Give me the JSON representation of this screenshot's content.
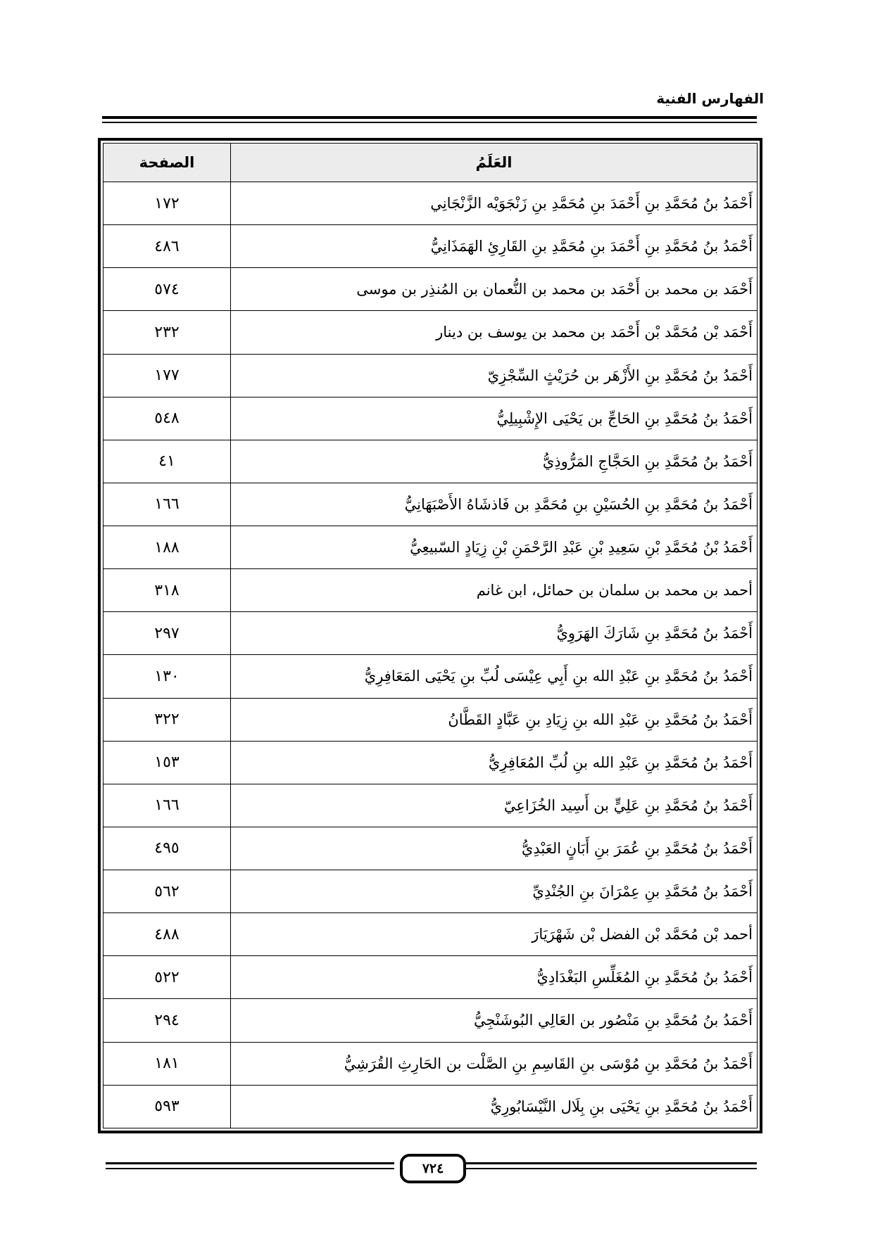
{
  "running_head": "الفهارس الفنية",
  "table": {
    "headers": {
      "name": "العَلَمُ",
      "page": "الصفحة"
    },
    "rows": [
      {
        "name": "أَحْمَدُ بنُ مُحَمَّدِ بنِ أَحْمَدَ بنِ مُحَمَّدِ بنِ زَنْجَوَيْه الزَّنْجَانِي",
        "page": "١٧٢"
      },
      {
        "name": "أَحْمَدُ بنُ مُحَمَّدِ بنِ أَحْمَدَ بنِ مُحَمَّدِ بنِ القَارِئِ الهَمَذَانِيُّ",
        "page": "٤٨٦"
      },
      {
        "name": "أَحْمَد بن محمد بن أَحْمَد بن محمد بن النُّعمان بن المُنذِر بن موسى",
        "page": "٥٧٤"
      },
      {
        "name": "أَحْمَد بْن مُحَمَّد بْن أَحْمَد بن محمد بن يوسف بن دينار",
        "page": "٢٣٢"
      },
      {
        "name": "أَحْمَدُ بنُ مُحَمَّدِ بنِ الأَزْهَر بن حُرَيْثٍ السِّجْزِيّ",
        "page": "١٧٧"
      },
      {
        "name": "أَحْمَدُ بنُ مُحَمَّدِ بنِ الحَاجِّ بن يَحْيَى الإِشْبِيلِيُّ",
        "page": "٥٤٨"
      },
      {
        "name": "أَحْمَدُ بنُ مُحَمَّدِ بنِ الحَجَّاجِ المَرُّوذِيُّ",
        "page": "٤١"
      },
      {
        "name": "أَحْمَدُ بنُ مُحَمَّدِ بنِ الحُسَيْنِ بنِ مُحَمَّدِ بن فَاذشَاهُ الأَصْبَهَانِيُّ",
        "page": "١٦٦"
      },
      {
        "name": "أَحْمَدُ بْنُ مُحَمَّدِ بْنِ سَعِيدِ بْنِ عَبْدِ الرَّحْمَنِ بْنِ زِيَادٍ السّبيعِيُّ",
        "page": "١٨٨"
      },
      {
        "name": "أحمد بن محمد بن سلمان بن حمائل، ابن غانم",
        "page": "٣١٨"
      },
      {
        "name": "أَحْمَدُ بنُ مُحَمَّدِ بنِ شَارَكَ الهَرَوِيُّ",
        "page": "٢٩٧"
      },
      {
        "name": "أَحْمَدُ بنُ مُحَمَّدِ بنِ عَبْدِ الله بنِ أَبِي عِيْسَى لُبِّ بنِ يَحْيَى المَعَافِرِيُّ",
        "page": "١٣٠"
      },
      {
        "name": "أَحْمَدُ بنُ مُحَمَّدِ بنِ عَبْدِ الله بنِ زِيَادِ بنِ عَبَّادٍ القَطَّانُ",
        "page": "٣٢٢"
      },
      {
        "name": "أَحْمَدُ بنُ مُحَمَّدِ بنِ عَبْدِ الله بنِ لُبِّ المُعَافِرِيُّ",
        "page": "١٥٣"
      },
      {
        "name": "أَحْمَدُ بنُ مُحَمَّدِ بنِ عَلِيٍّ بن أَسِيد الخُزَاعِيّ",
        "page": "١٦٦"
      },
      {
        "name": "أَحْمَدُ بنُ مُحَمَّدِ بنِ عُمَرَ بنِ أَبَانٍ العَبْدِيُّ",
        "page": "٤٩٥"
      },
      {
        "name": "أَحْمَدُ بنُ مُحَمَّدِ بنِ عِمْرَانَ بنِ الجُنْدِيِّ",
        "page": "٥٦٢"
      },
      {
        "name": "أحمد بْن مُحَمَّد بْن الفضل بْن شَهْرَيَارَ",
        "page": "٤٨٨"
      },
      {
        "name": "أَحْمَدُ بنُ مُحَمَّدِ بنِ المُغَلِّسِ البَغْدَادِيُّ",
        "page": "٥٢٢"
      },
      {
        "name": "أَحْمَدُ بنُ مُحَمَّدِ بنِ مَنْصُور بن العَالِي البُوشَنْجِيُّ",
        "page": "٢٩٤"
      },
      {
        "name": "أَحْمَدُ بنُ مُحَمَّدِ بنِ مُوْسَى بنِ القَاسِمِ بنِ الصَّلْت بن الحَارِثِ القُرَشِيُّ",
        "page": "١٨١"
      },
      {
        "name": "أَحْمَدُ بنُ مُحَمَّدِ بنِ يَحْيَى بنِ بِلَال النَّيْسَابُورِيُّ",
        "page": "٥٩٣"
      }
    ]
  },
  "page_number": "٧٢٤"
}
